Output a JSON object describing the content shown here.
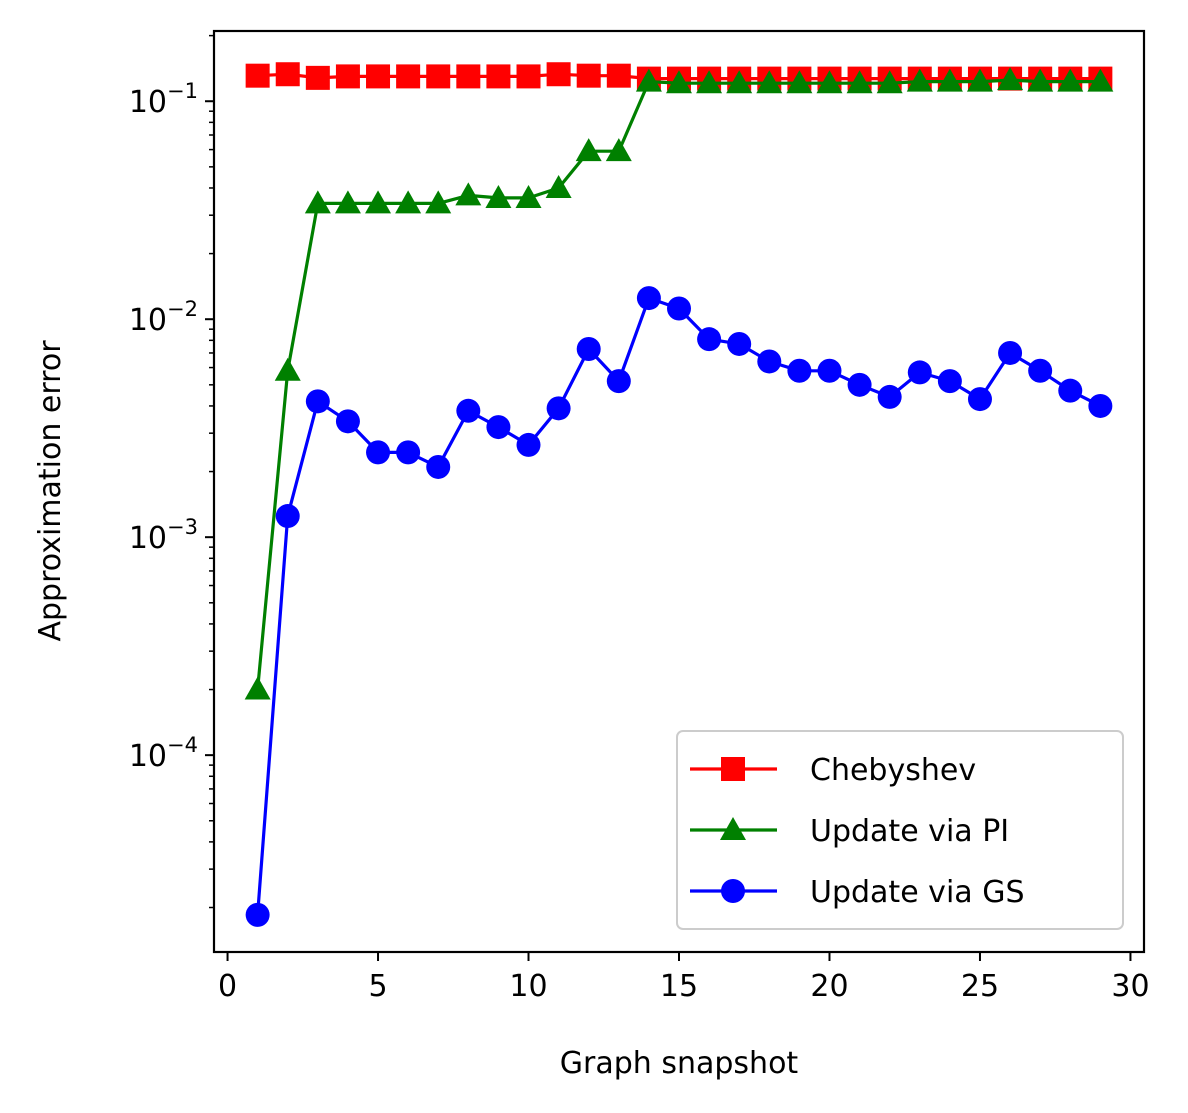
{
  "chart_data": {
    "type": "line",
    "xlabel": "Graph snapshot",
    "ylabel": "Approximation error",
    "xlim": [
      -0.45,
      30.45
    ],
    "ylim": [
      1.25e-05,
      0.21
    ],
    "yscale": "log",
    "xticks": [
      0,
      5,
      10,
      15,
      20,
      25,
      30
    ],
    "yticks": [
      {
        "value": 0.1,
        "base": "10",
        "exp": "−1"
      },
      {
        "value": 0.01,
        "base": "10",
        "exp": "−2"
      },
      {
        "value": 0.001,
        "base": "10",
        "exp": "−3"
      },
      {
        "value": 0.0001,
        "base": "10",
        "exp": "−4"
      }
    ],
    "grid": false,
    "legend_position": "lower right",
    "x": [
      1,
      2,
      3,
      4,
      5,
      6,
      7,
      8,
      9,
      10,
      11,
      12,
      13,
      14,
      15,
      16,
      17,
      18,
      19,
      20,
      21,
      22,
      23,
      24,
      25,
      26,
      27,
      28,
      29
    ],
    "series": [
      {
        "name": "Chebyshev",
        "color": "#ff0000",
        "marker": "square",
        "values": [
          0.131,
          0.133,
          0.128,
          0.13,
          0.13,
          0.13,
          0.13,
          0.13,
          0.13,
          0.13,
          0.133,
          0.131,
          0.131,
          0.127,
          0.127,
          0.127,
          0.127,
          0.127,
          0.127,
          0.127,
          0.127,
          0.127,
          0.127,
          0.127,
          0.127,
          0.127,
          0.127,
          0.127,
          0.127
        ]
      },
      {
        "name": "Update via PI",
        "color": "#008000",
        "marker": "triangle",
        "values": [
          0.0002,
          0.0058,
          0.034,
          0.034,
          0.034,
          0.034,
          0.034,
          0.037,
          0.036,
          0.036,
          0.04,
          0.059,
          0.059,
          0.123,
          0.121,
          0.121,
          0.121,
          0.121,
          0.121,
          0.121,
          0.121,
          0.121,
          0.123,
          0.123,
          0.123,
          0.125,
          0.123,
          0.123,
          0.123
        ]
      },
      {
        "name": "Update via GS",
        "color": "#0000ff",
        "marker": "circle",
        "values": [
          1.85e-05,
          0.00125,
          0.0042,
          0.0034,
          0.00245,
          0.00245,
          0.0021,
          0.0038,
          0.0032,
          0.00265,
          0.0039,
          0.0073,
          0.0052,
          0.0125,
          0.0112,
          0.0081,
          0.0077,
          0.0064,
          0.0058,
          0.0058,
          0.005,
          0.0044,
          0.0057,
          0.0052,
          0.0043,
          0.007,
          0.0058,
          0.0047,
          0.004
        ]
      }
    ]
  }
}
